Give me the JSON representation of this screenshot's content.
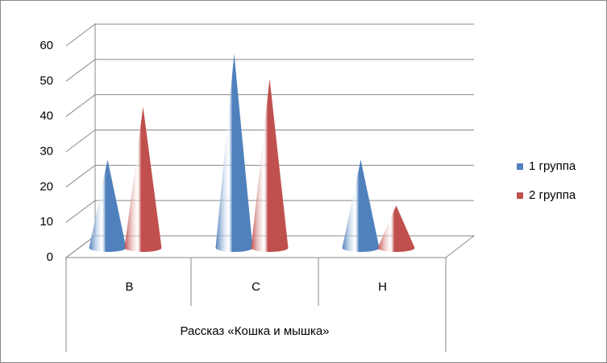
{
  "chart_data": {
    "type": "cone3d",
    "categories": [
      "В",
      "С",
      "Н"
    ],
    "xlabel": "Рассказ «Кошка и мышка»",
    "series": [
      {
        "name": "1 группа",
        "color": "#4f81bd",
        "values": [
          25,
          55,
          25
        ]
      },
      {
        "name": "2 группа",
        "color": "#c0504d",
        "values": [
          40,
          48,
          12
        ]
      }
    ],
    "ylim": [
      0,
      60
    ],
    "yticks": [
      0,
      10,
      20,
      30,
      40,
      50,
      60
    ],
    "grid": true,
    "legend": "right"
  }
}
